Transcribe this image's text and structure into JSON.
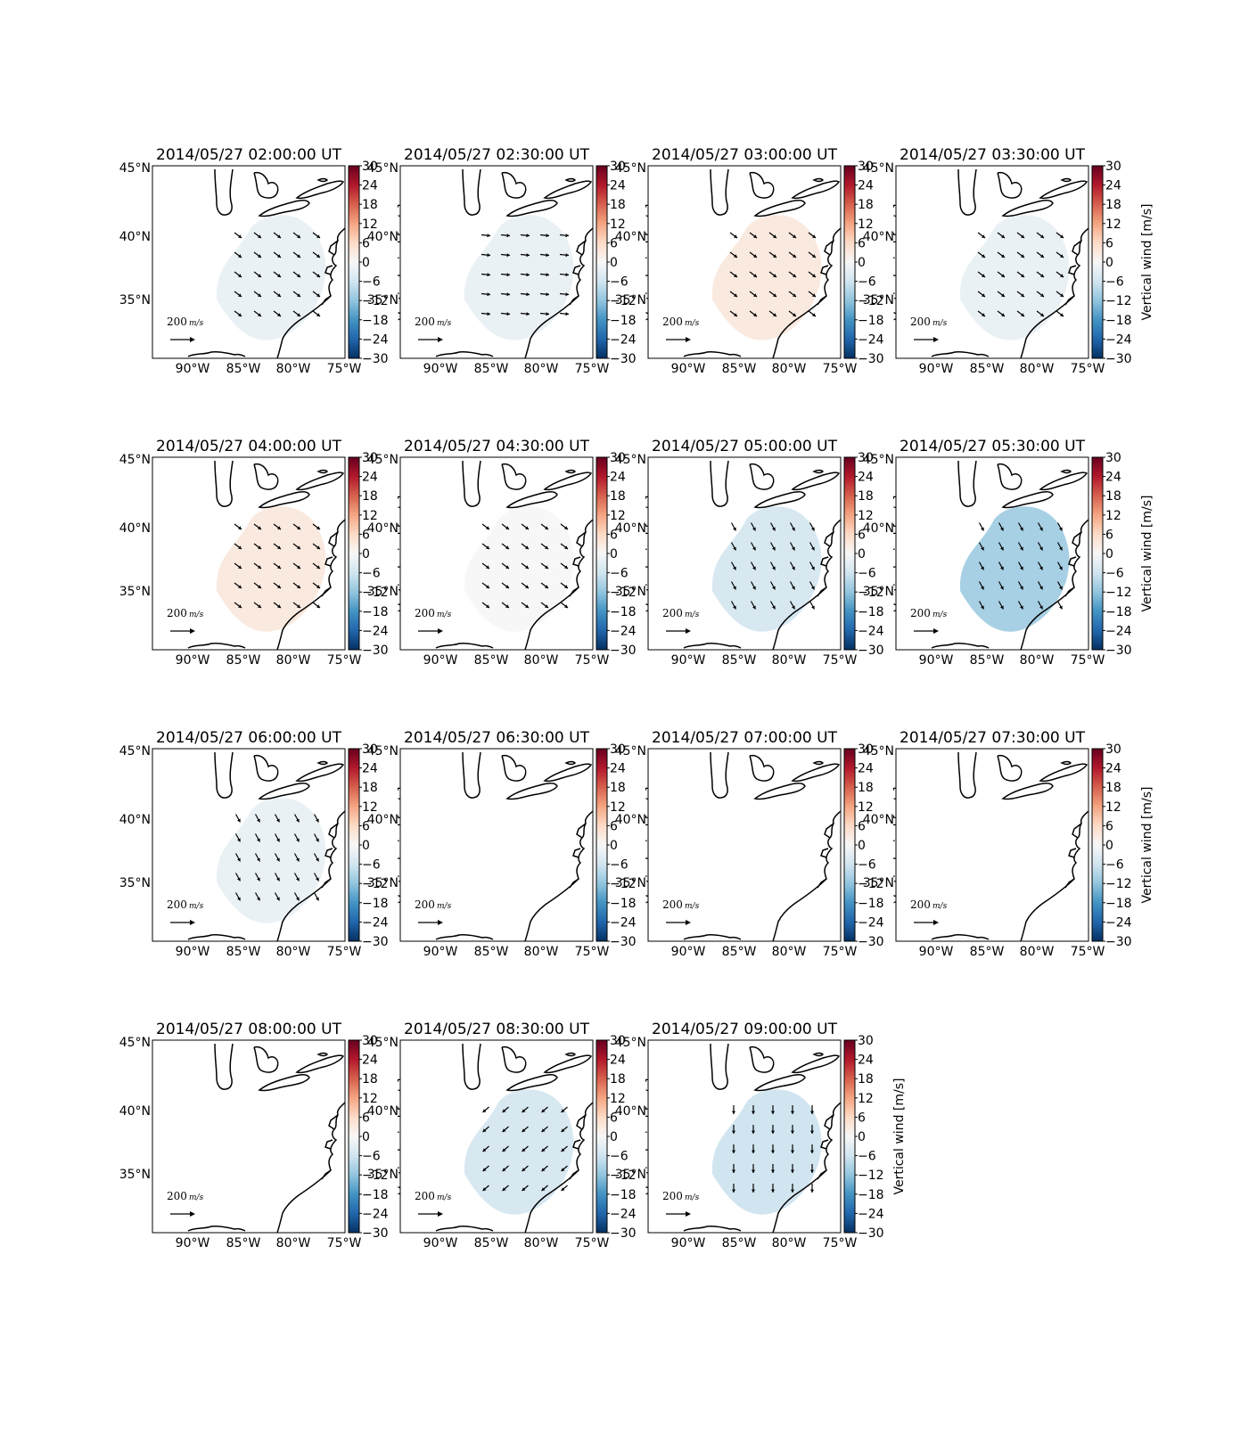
{
  "figure": {
    "colorbar_label": "Vertical wind [m/s]",
    "colorbar_ticks": [
      "30",
      "24",
      "18",
      "12",
      "6",
      "0",
      "−6",
      "−12",
      "−18",
      "−24",
      "−30"
    ],
    "lat_ticks": [
      "45°N",
      "40°N",
      "35°N"
    ],
    "lon_ticks": [
      "90°W",
      "85°W",
      "80°W",
      "75°W"
    ],
    "scale_label": "200",
    "scale_unit": "m/s",
    "colormap": [
      "#67001f",
      "#b2182b",
      "#d6604d",
      "#f4a582",
      "#fddbc7",
      "#f7f7f7",
      "#d1e5f0",
      "#92c5de",
      "#4393c3",
      "#2166ac",
      "#053061"
    ],
    "coast_color": "#000000"
  },
  "panels": [
    {
      "title": "2014/05/27 02:00:00 UT",
      "vertical_wind": -2,
      "has_data": true,
      "arrow_dir": "se"
    },
    {
      "title": "2014/05/27 02:30:00 UT",
      "vertical_wind": -2,
      "has_data": true,
      "arrow_dir": "e"
    },
    {
      "title": "2014/05/27 03:00:00 UT",
      "vertical_wind": 3,
      "has_data": true,
      "arrow_dir": "se"
    },
    {
      "title": "2014/05/27 03:30:00 UT",
      "vertical_wind": -2,
      "has_data": true,
      "arrow_dir": "se"
    },
    {
      "title": "2014/05/27 04:00:00 UT",
      "vertical_wind": 3,
      "has_data": true,
      "arrow_dir": "se"
    },
    {
      "title": "2014/05/27 04:30:00 UT",
      "vertical_wind": 0,
      "has_data": true,
      "arrow_dir": "se"
    },
    {
      "title": "2014/05/27 05:00:00 UT",
      "vertical_wind": -5,
      "has_data": true,
      "arrow_dir": "sse"
    },
    {
      "title": "2014/05/27 05:30:00 UT",
      "vertical_wind": -10,
      "has_data": true,
      "arrow_dir": "sse"
    },
    {
      "title": "2014/05/27 06:00:00 UT",
      "vertical_wind": -2,
      "has_data": true,
      "arrow_dir": "sse"
    },
    {
      "title": "2014/05/27 06:30:00 UT",
      "vertical_wind": null,
      "has_data": false,
      "arrow_dir": ""
    },
    {
      "title": "2014/05/27 07:00:00 UT",
      "vertical_wind": null,
      "has_data": false,
      "arrow_dir": ""
    },
    {
      "title": "2014/05/27 07:30:00 UT",
      "vertical_wind": null,
      "has_data": false,
      "arrow_dir": ""
    },
    {
      "title": "2014/05/27 08:00:00 UT",
      "vertical_wind": null,
      "has_data": false,
      "arrow_dir": ""
    },
    {
      "title": "2014/05/27 08:30:00 UT",
      "vertical_wind": -5,
      "has_data": true,
      "arrow_dir": "sw"
    },
    {
      "title": "2014/05/27 09:00:00 UT",
      "vertical_wind": -6,
      "has_data": true,
      "arrow_dir": "s"
    }
  ]
}
